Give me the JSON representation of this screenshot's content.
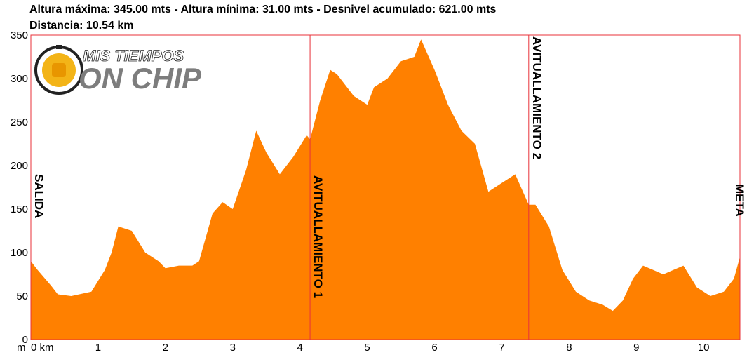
{
  "header": {
    "line1": "Altura máxima: 345.00 mts - Altura mínima: 31.00 mts - Desnivel acumulado: 621.00 mts",
    "line2": "Distancia: 10.54 km"
  },
  "logo": {
    "text_top": "MIS TIEMPOS",
    "text_bottom": "ON CHIP",
    "colors": {
      "chip": "#f3b417",
      "text": "#7d7d7d",
      "ring": "#222222"
    }
  },
  "colors": {
    "fill": "#ff8000",
    "frame": "#e8323a"
  },
  "chart_data": {
    "type": "area",
    "title": "",
    "xlabel": "",
    "ylabel": "",
    "x_unit": "km",
    "y_unit": "m",
    "xlim": [
      0,
      10.54
    ],
    "ylim": [
      0,
      350
    ],
    "x_ticks": [
      0,
      1,
      2,
      3,
      4,
      5,
      6,
      7,
      8,
      9,
      10
    ],
    "x_tick_labels": [
      "0 km",
      "1",
      "2",
      "3",
      "4",
      "5",
      "6",
      "7",
      "8",
      "9",
      "10"
    ],
    "y_ticks": [
      0,
      50,
      100,
      150,
      200,
      250,
      300,
      350
    ],
    "y_tick_labels": [
      "0",
      "50",
      "100",
      "150",
      "200",
      "250",
      "300",
      "350"
    ],
    "y_axis_unit_label": "m",
    "series": [
      {
        "x": [
          0,
          0.1,
          0.3,
          0.4,
          0.6,
          0.9,
          1.1,
          1.2,
          1.3,
          1.5,
          1.7,
          1.9,
          2.0,
          2.2,
          2.4,
          2.5,
          2.7,
          2.85,
          3.0,
          3.2,
          3.35,
          3.5,
          3.7,
          3.9,
          4.1,
          4.15,
          4.3,
          4.45,
          4.55,
          4.8,
          5.0,
          5.1,
          5.3,
          5.5,
          5.7,
          5.8,
          6.0,
          6.2,
          6.4,
          6.6,
          6.8,
          7.0,
          7.2,
          7.4,
          7.5,
          7.7,
          7.9,
          8.1,
          8.3,
          8.5,
          8.65,
          8.8,
          8.95,
          9.1,
          9.25,
          9.4,
          9.55,
          9.7,
          9.9,
          10.1,
          10.3,
          10.45,
          10.54
        ],
        "y": [
          90,
          80,
          62,
          52,
          50,
          55,
          80,
          100,
          130,
          125,
          100,
          90,
          82,
          85,
          85,
          90,
          145,
          158,
          150,
          195,
          240,
          215,
          190,
          210,
          235,
          230,
          275,
          310,
          305,
          280,
          270,
          290,
          300,
          320,
          325,
          345,
          310,
          270,
          240,
          225,
          170,
          180,
          190,
          155,
          155,
          130,
          80,
          55,
          45,
          40,
          33,
          45,
          70,
          85,
          80,
          75,
          80,
          85,
          60,
          50,
          55,
          70,
          95
        ]
      }
    ],
    "annotations": [
      {
        "x": 0,
        "text": "SALIDA"
      },
      {
        "x": 4.15,
        "text": "AVITUALLAMIENTO 1"
      },
      {
        "x": 7.4,
        "text": "AVITUALLAMIENTO 2"
      },
      {
        "x": 10.54,
        "text": "META"
      }
    ],
    "grid": false,
    "legend": "none"
  }
}
